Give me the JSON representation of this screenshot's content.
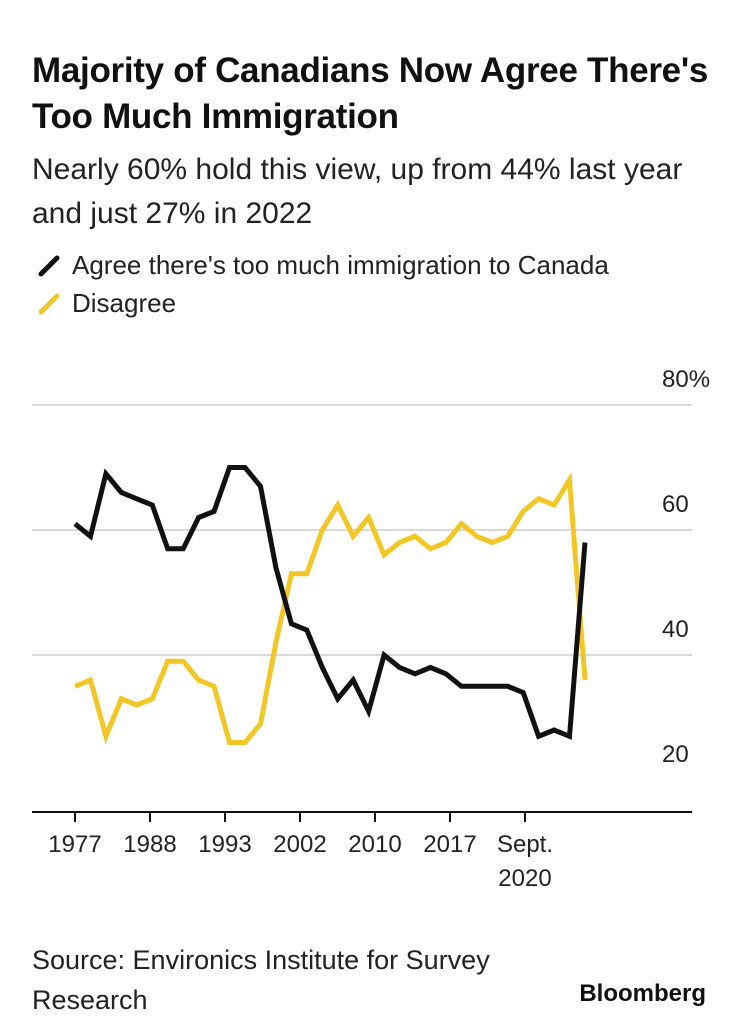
{
  "title": "Majority of Canadians Now Agree There's Too Much Immigration",
  "subtitle": "Nearly 60% hold this view, up from 44% last year and just 27% in 2022",
  "legend": {
    "agree": "Agree there's too much immigration to Canada",
    "disagree": "Disagree"
  },
  "source": "Source: Environics Institute for Survey Research",
  "brand": "Bloomberg",
  "colors": {
    "agree": "#111111",
    "disagree": "#f3c623",
    "grid": "#d9d9d9",
    "axis": "#111111"
  },
  "chart_data": {
    "type": "line",
    "ylim": [
      15,
      80
    ],
    "y_ticks": [
      20,
      40,
      60,
      80
    ],
    "y_tick_labels": [
      "20",
      "40",
      "60",
      "80%"
    ],
    "x_tick_labels": [
      "1977",
      "1988",
      "1993",
      "2002",
      "2010",
      "2017",
      "Sept.\n2020"
    ],
    "series": [
      {
        "name": "Agree there's too much immigration to Canada",
        "color": "#111111",
        "values": [
          61,
          59,
          69,
          66,
          65,
          64,
          57,
          57,
          62,
          63,
          70,
          70,
          67,
          54,
          45,
          44,
          38,
          33,
          36,
          31,
          40,
          38,
          37,
          38,
          37,
          35,
          35,
          35,
          35,
          34,
          27,
          28,
          27,
          58
        ]
      },
      {
        "name": "Disagree",
        "color": "#f3c623",
        "values": [
          35,
          36,
          27,
          33,
          32,
          33,
          39,
          39,
          36,
          35,
          26,
          26,
          29,
          42,
          53,
          53,
          60,
          64,
          59,
          62,
          56,
          58,
          59,
          57,
          58,
          61,
          59,
          58,
          59,
          63,
          65,
          64,
          68,
          36
        ]
      }
    ]
  }
}
